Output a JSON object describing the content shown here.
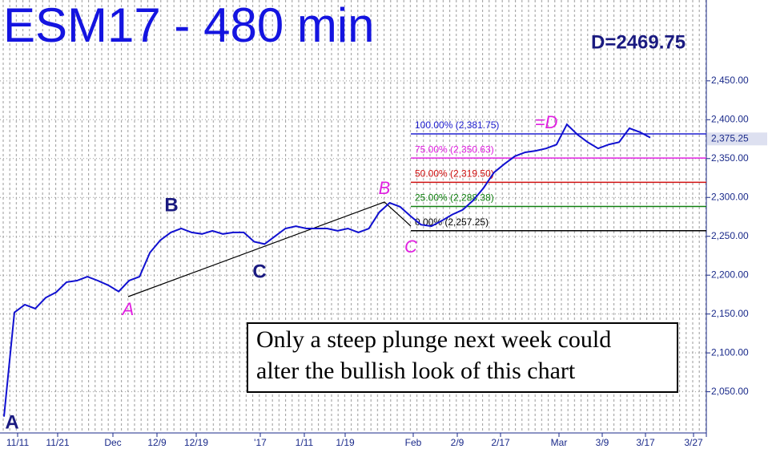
{
  "chart_data": {
    "type": "line",
    "title": "ESM17 - 480 min",
    "target_label": "D=2469.75",
    "series": [
      {
        "name": "ESM17",
        "color": "#1010d0",
        "values": [
          2018,
          2152,
          2162,
          2157,
          2171,
          2178,
          2191,
          2193,
          2198,
          2193,
          2187,
          2179,
          2193,
          2198,
          2229,
          2245,
          2255,
          2260,
          2255,
          2253,
          2257,
          2253,
          2255,
          2255,
          2243,
          2240,
          2250,
          2260,
          2263,
          2260,
          2260,
          2260,
          2257,
          2260,
          2255,
          2260,
          2281,
          2293,
          2288,
          2276,
          2265,
          2263,
          2270,
          2278,
          2284,
          2296,
          2312,
          2332,
          2343,
          2353,
          2358,
          2360,
          2363,
          2368,
          2394,
          2381,
          2371,
          2363,
          2368,
          2371,
          2389,
          2384,
          2377
        ]
      }
    ],
    "last_value": 2375.25,
    "last_value_label": "2,375.25",
    "ylim": [
      1997,
      2554
    ],
    "yticks": [
      {
        "value": 2050,
        "label": "2,050.00"
      },
      {
        "value": 2100,
        "label": "2,100.00"
      },
      {
        "value": 2150,
        "label": "2,150.00"
      },
      {
        "value": 2200,
        "label": "2,200.00"
      },
      {
        "value": 2250,
        "label": "2,250.00"
      },
      {
        "value": 2300,
        "label": "2,300.00"
      },
      {
        "value": 2350,
        "label": "2,350.00"
      },
      {
        "value": 2400,
        "label": "2,400.00"
      },
      {
        "value": 2450,
        "label": "2,450.00"
      }
    ],
    "xtick_labels": [
      "11/11",
      "11/21",
      "Dec",
      "12/9",
      "12/19",
      "'17",
      "1/11",
      "1/19",
      "Feb",
      "2/9",
      "2/17",
      "Mar",
      "3/9",
      "3/17",
      "3/27"
    ],
    "fib_levels": [
      {
        "value": 2381.75,
        "label": "100.00% (2,381.75)",
        "color": "#2020d0"
      },
      {
        "value": 2350.63,
        "label": "75.00% (2,350.63)",
        "color": "#e020e0"
      },
      {
        "value": 2319.5,
        "label": "50.00% (2,319.50)",
        "color": "#d01010"
      },
      {
        "value": 2288.38,
        "label": "25.00% (2,288.38)",
        "color": "#108010"
      },
      {
        "value": 2257.25,
        "label": "0.00% (2,257.25)",
        "color": "#000000"
      }
    ],
    "wave_labels": [
      "A",
      "B",
      "C"
    ],
    "pattern_labels": [
      "A",
      "B",
      "C",
      "=D"
    ],
    "annotation": [
      "Only a steep plunge next week could",
      "alter the bullish look of this chart"
    ]
  }
}
